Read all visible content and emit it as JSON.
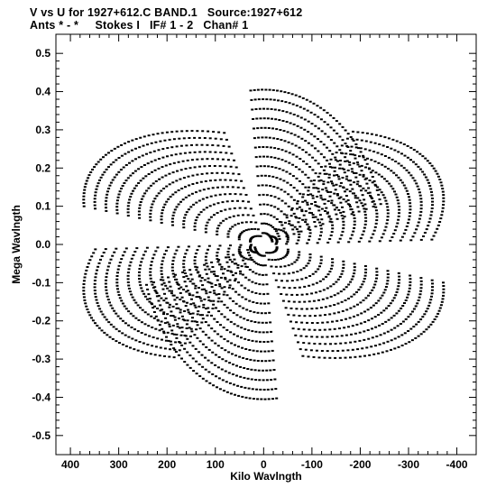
{
  "chart_data": {
    "type": "scatter",
    "title": "V vs U for 1927+612.C BAND.1   Source:1927+612",
    "subtitle": "Ants * - *     Stokes I   IF# 1 - 2   Chan# 1",
    "xlabel": "Kilo Wavlngth",
    "ylabel": "Mega Wavlngth",
    "xlim": [
      430,
      -440
    ],
    "ylim": [
      -0.55,
      0.55
    ],
    "x_ticks": [
      400,
      300,
      200,
      100,
      0,
      -100,
      -200,
      -300,
      -400
    ],
    "x_tick_labels": [
      "400",
      "300",
      "200",
      "100",
      "0",
      "-100",
      "-200",
      "-300",
      "-400"
    ],
    "y_ticks": [
      0.5,
      0.4,
      0.3,
      0.2,
      0.1,
      0.0,
      -0.1,
      -0.2,
      -0.3,
      -0.4,
      -0.5
    ],
    "y_tick_labels": [
      "0.5",
      "0.4",
      "0.3",
      "0.2",
      "0.1",
      "0.0",
      "-0.1",
      "-0.2",
      "-0.3",
      "-0.4",
      "-0.5"
    ],
    "grid": false,
    "marker_color": "#000000",
    "coverage": {
      "track_semi_major_k": [
        30,
        55,
        80,
        105,
        130,
        155,
        180,
        205,
        230,
        255,
        280,
        305,
        330,
        355,
        380,
        405
      ],
      "track_axis_ratio": 0.62,
      "orientations_deg": [
        -30,
        30,
        90
      ],
      "sampled_fraction_of_track": 0.45
    }
  }
}
